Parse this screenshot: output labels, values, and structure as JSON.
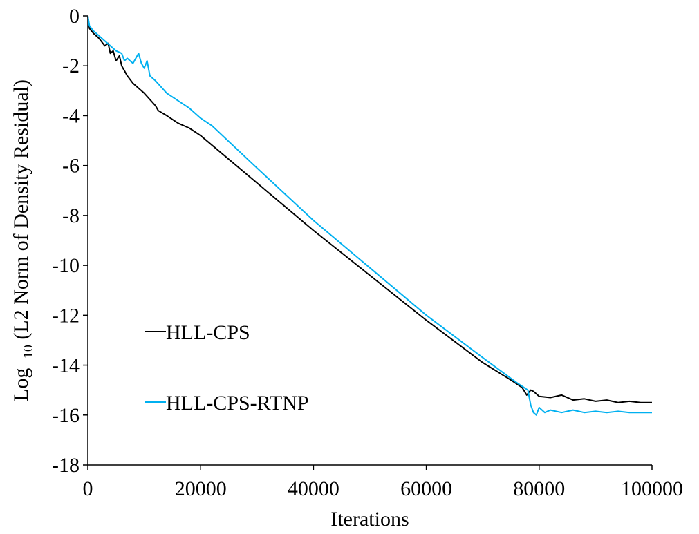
{
  "chart_data": {
    "type": "line",
    "title": "",
    "xlabel": "Iterations",
    "ylabel": {
      "prefix": "Log",
      "subscript": "10",
      "main": "(L2 Norm of Density Residual)"
    },
    "xlim": [
      0,
      100000
    ],
    "ylim": [
      -18,
      0
    ],
    "xticks": [
      0,
      20000,
      40000,
      60000,
      80000,
      100000
    ],
    "yticks": [
      0,
      -2,
      -4,
      -6,
      -8,
      -10,
      -12,
      -14,
      -16,
      -18
    ],
    "grid": false,
    "legend_position": "lower-left",
    "series": [
      {
        "name": "HLL-CPS",
        "color": "#000000",
        "points": [
          [
            0,
            0
          ],
          [
            300,
            -0.5
          ],
          [
            1000,
            -0.7
          ],
          [
            2000,
            -0.9
          ],
          [
            3000,
            -1.2
          ],
          [
            3600,
            -1.1
          ],
          [
            4000,
            -1.5
          ],
          [
            4500,
            -1.4
          ],
          [
            5000,
            -1.8
          ],
          [
            5600,
            -1.6
          ],
          [
            6000,
            -2.0
          ],
          [
            7000,
            -2.4
          ],
          [
            8000,
            -2.7
          ],
          [
            10000,
            -3.1
          ],
          [
            12000,
            -3.6
          ],
          [
            12500,
            -3.8
          ],
          [
            14000,
            -4.0
          ],
          [
            16000,
            -4.3
          ],
          [
            18000,
            -4.5
          ],
          [
            20000,
            -4.8
          ],
          [
            30000,
            -6.7
          ],
          [
            40000,
            -8.6
          ],
          [
            50000,
            -10.4
          ],
          [
            60000,
            -12.2
          ],
          [
            70000,
            -13.9
          ],
          [
            75000,
            -14.6
          ],
          [
            77000,
            -14.9
          ],
          [
            77800,
            -15.2
          ],
          [
            78500,
            -15.0
          ],
          [
            79000,
            -15.05
          ],
          [
            80000,
            -15.25
          ],
          [
            82000,
            -15.3
          ],
          [
            84000,
            -15.2
          ],
          [
            86000,
            -15.4
          ],
          [
            88000,
            -15.35
          ],
          [
            90000,
            -15.45
          ],
          [
            92000,
            -15.4
          ],
          [
            94000,
            -15.5
          ],
          [
            96000,
            -15.45
          ],
          [
            98000,
            -15.5
          ],
          [
            100000,
            -15.5
          ]
        ]
      },
      {
        "name": "HLL-CPS-RTNP",
        "color": "#00B0F0",
        "points": [
          [
            0,
            0
          ],
          [
            300,
            -0.4
          ],
          [
            1000,
            -0.6
          ],
          [
            2000,
            -0.8
          ],
          [
            3000,
            -1.0
          ],
          [
            4000,
            -1.2
          ],
          [
            5000,
            -1.4
          ],
          [
            6000,
            -1.5
          ],
          [
            6500,
            -1.8
          ],
          [
            7000,
            -1.7
          ],
          [
            8000,
            -1.9
          ],
          [
            9000,
            -1.5
          ],
          [
            9500,
            -1.9
          ],
          [
            10000,
            -2.1
          ],
          [
            10500,
            -1.8
          ],
          [
            11000,
            -2.4
          ],
          [
            12000,
            -2.6
          ],
          [
            14000,
            -3.1
          ],
          [
            16000,
            -3.4
          ],
          [
            18000,
            -3.7
          ],
          [
            20000,
            -4.1
          ],
          [
            22000,
            -4.4
          ],
          [
            30000,
            -6.1
          ],
          [
            40000,
            -8.2
          ],
          [
            50000,
            -10.1
          ],
          [
            60000,
            -12.0
          ],
          [
            70000,
            -13.7
          ],
          [
            76000,
            -14.7
          ],
          [
            78000,
            -15.0
          ],
          [
            78500,
            -15.6
          ],
          [
            79000,
            -15.9
          ],
          [
            79500,
            -16.0
          ],
          [
            80000,
            -15.7
          ],
          [
            81000,
            -15.9
          ],
          [
            82000,
            -15.8
          ],
          [
            84000,
            -15.9
          ],
          [
            86000,
            -15.8
          ],
          [
            88000,
            -15.9
          ],
          [
            90000,
            -15.85
          ],
          [
            92000,
            -15.9
          ],
          [
            94000,
            -15.85
          ],
          [
            96000,
            -15.9
          ],
          [
            98000,
            -15.9
          ],
          [
            100000,
            -15.9
          ]
        ]
      }
    ]
  }
}
